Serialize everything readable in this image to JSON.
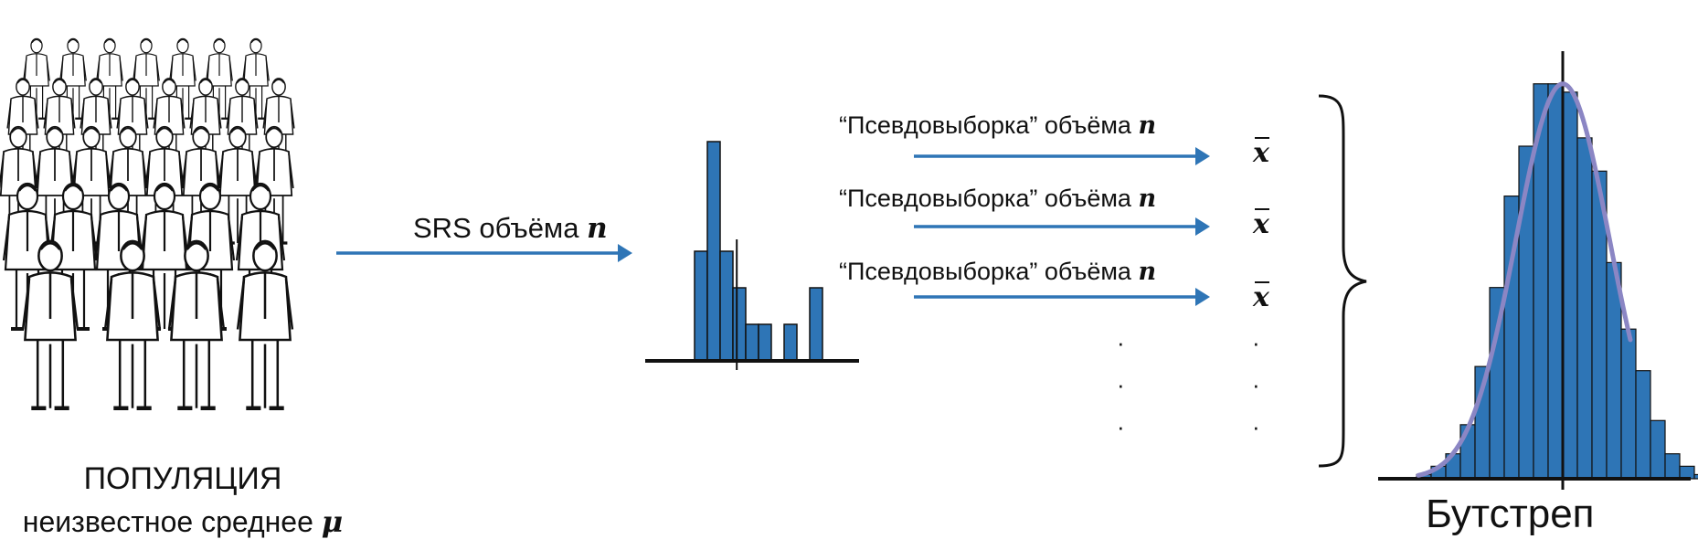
{
  "population": {
    "title": "ПОПУЛЯЦИЯ",
    "subtitle_text": "неизвестное среднее",
    "subtitle_symbol": "μ"
  },
  "srs_label": {
    "text": "SRS объёма",
    "symbol": "n"
  },
  "resamples": [
    {
      "text": "“Псевдовыборка” объёма",
      "symbol": "n",
      "stat": "x"
    },
    {
      "text": "“Псевдовыборка” объёма",
      "symbol": "n",
      "stat": "x"
    },
    {
      "text": "“Псевдовыборка” объёма",
      "symbol": "n",
      "stat": "x"
    }
  ],
  "continuation": "·",
  "bootstrap_label": "Бутстреп",
  "colors": {
    "bar_fill": "#2e75b6",
    "arrow": "#2e75b6",
    "curve": "#8b86c4",
    "ink": "#111111"
  },
  "icons": {
    "crowd": "crowd-of-people-illustration"
  },
  "chart_data": [
    {
      "type": "bar",
      "name": "sample-histogram",
      "values": [
        6,
        12,
        6,
        4,
        2,
        2,
        0,
        2,
        0,
        4
      ],
      "mean_line_at_bin": 3.3
    },
    {
      "type": "bar",
      "name": "bootstrap-distribution",
      "values": [
        1,
        3,
        6,
        13,
        27,
        46,
        68,
        80,
        95,
        95,
        93,
        82,
        74,
        52,
        36,
        26,
        14,
        6,
        3,
        1
      ],
      "overlay": "normal-curve",
      "center_line_at_bin": 10
    }
  ]
}
